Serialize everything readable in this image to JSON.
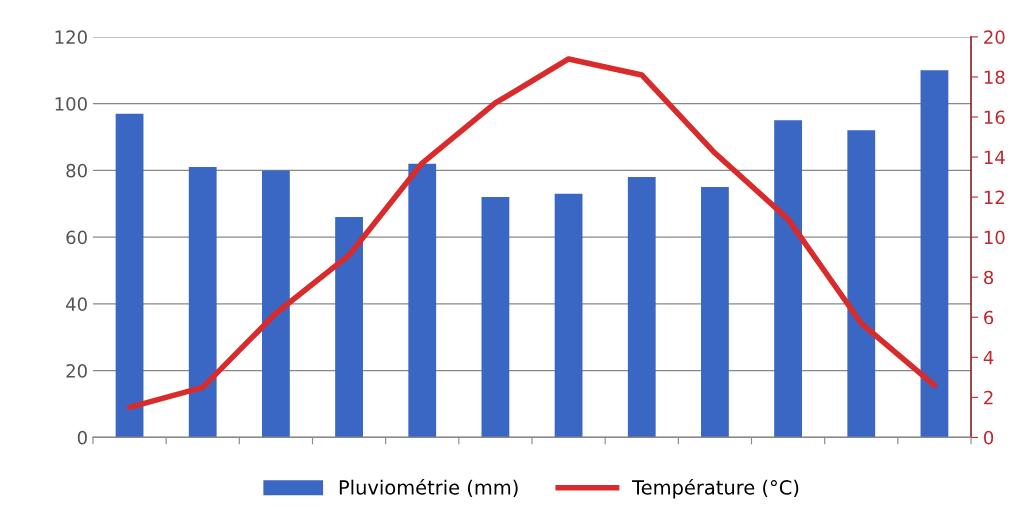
{
  "chart_data": {
    "type": "bar",
    "categories": [
      null,
      null,
      null,
      null,
      null,
      null,
      null,
      null,
      null,
      null,
      null,
      null
    ],
    "series": [
      {
        "name": "Pluviométrie (mm)",
        "color": "#3a66c4",
        "values": [
          97,
          81,
          80,
          66,
          82,
          72,
          73,
          78,
          75,
          95,
          92,
          110
        ]
      },
      {
        "name": "Température (°C)",
        "type": "line",
        "axis": "y2",
        "color": "#d92b2b",
        "values": [
          1.5,
          2.5,
          6.2,
          9.1,
          13.7,
          16.7,
          18.9,
          18.1,
          14.2,
          10.9,
          5.7,
          2.6
        ]
      }
    ],
    "ylim": [
      0,
      120
    ],
    "yticks": [
      0,
      20,
      40,
      60,
      80,
      100,
      120
    ],
    "y2lim": [
      0,
      20
    ],
    "y2ticks": [
      0,
      2,
      4,
      6,
      8,
      10,
      12,
      14,
      16,
      18,
      20
    ],
    "grid": "y",
    "legend": "bottom",
    "marker": "none",
    "line_style": "solid"
  }
}
